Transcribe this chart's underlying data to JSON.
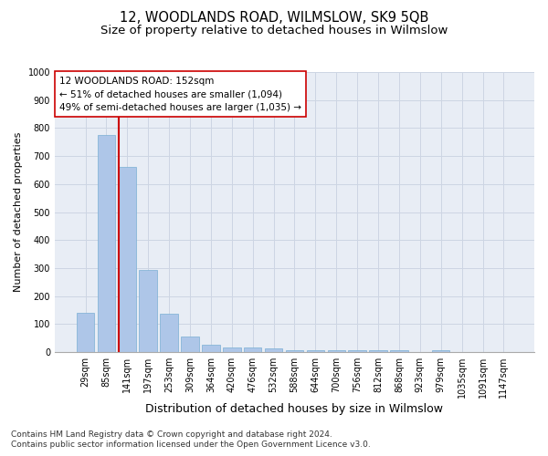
{
  "title": "12, WOODLANDS ROAD, WILMSLOW, SK9 5QB",
  "subtitle": "Size of property relative to detached houses in Wilmslow",
  "xlabel": "Distribution of detached houses by size in Wilmslow",
  "ylabel": "Number of detached properties",
  "categories": [
    "29sqm",
    "85sqm",
    "141sqm",
    "197sqm",
    "253sqm",
    "309sqm",
    "364sqm",
    "420sqm",
    "476sqm",
    "532sqm",
    "588sqm",
    "644sqm",
    "700sqm",
    "756sqm",
    "812sqm",
    "868sqm",
    "923sqm",
    "979sqm",
    "1035sqm",
    "1091sqm",
    "1147sqm"
  ],
  "values": [
    140,
    775,
    660,
    293,
    138,
    55,
    28,
    18,
    18,
    13,
    8,
    8,
    8,
    8,
    8,
    8,
    0,
    8,
    0,
    0,
    0
  ],
  "bar_color": "#aec6e8",
  "bar_edge_color": "#7aafd4",
  "vline_x_idx": 2,
  "vline_color": "#cc0000",
  "annotation_text": "12 WOODLANDS ROAD: 152sqm\n← 51% of detached houses are smaller (1,094)\n49% of semi-detached houses are larger (1,035) →",
  "annotation_box_color": "#ffffff",
  "annotation_box_edgecolor": "#cc0000",
  "ylim": [
    0,
    1000
  ],
  "yticks": [
    0,
    100,
    200,
    300,
    400,
    500,
    600,
    700,
    800,
    900,
    1000
  ],
  "grid_color": "#cdd5e3",
  "bg_color": "#e8edf5",
  "footer1": "Contains HM Land Registry data © Crown copyright and database right 2024.",
  "footer2": "Contains public sector information licensed under the Open Government Licence v3.0.",
  "title_fontsize": 10.5,
  "subtitle_fontsize": 9.5,
  "xlabel_fontsize": 9,
  "ylabel_fontsize": 8,
  "tick_fontsize": 7,
  "annotation_fontsize": 7.5,
  "footer_fontsize": 6.5
}
